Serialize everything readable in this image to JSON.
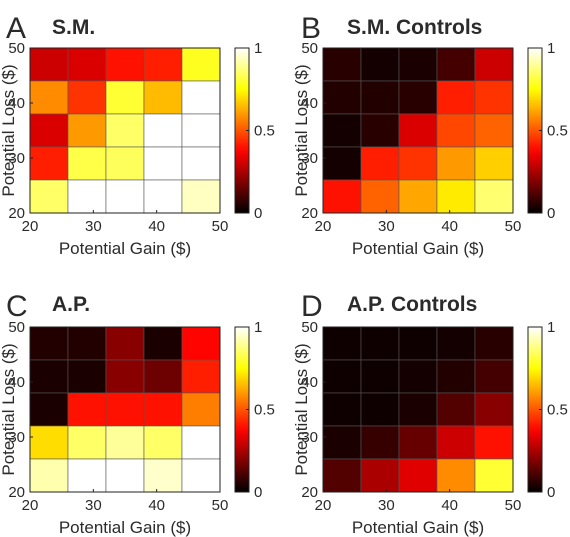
{
  "chart_data": [
    {
      "type": "heatmap",
      "panel_letter": "A",
      "title": "S.M.",
      "xlabel": "Potential Gain ($)",
      "ylabel": "Potential Loss ($)",
      "xlim": [
        20,
        50
      ],
      "ylim": [
        20,
        50
      ],
      "xticks": [
        "20",
        "30",
        "40",
        "50"
      ],
      "yticks": [
        "20",
        "30",
        "40",
        "50"
      ],
      "colorbar": {
        "range": [
          0,
          1
        ],
        "ticks": [
          "0",
          "0.5",
          "1"
        ],
        "colormap": "hot"
      },
      "grid_rows_top_to_bottom": [
        [
          0.3,
          0.32,
          0.4,
          0.42,
          0.78
        ],
        [
          0.58,
          0.45,
          0.8,
          0.65,
          1.0
        ],
        [
          0.32,
          0.6,
          0.85,
          1.0,
          1.0
        ],
        [
          0.42,
          0.82,
          0.84,
          1.0,
          1.0
        ],
        [
          0.85,
          1.0,
          1.0,
          1.0,
          0.94
        ]
      ]
    },
    {
      "type": "heatmap",
      "panel_letter": "B",
      "title": "S.M. Controls",
      "xlabel": "Potential Gain ($)",
      "ylabel": "Potential Loss ($)",
      "xlim": [
        20,
        50
      ],
      "ylim": [
        20,
        50
      ],
      "xticks": [
        "20",
        "30",
        "40",
        "50"
      ],
      "yticks": [
        "20",
        "30",
        "40",
        "50"
      ],
      "colorbar": {
        "range": [
          0,
          1
        ],
        "ticks": [
          "0",
          "0.5",
          "1"
        ],
        "colormap": "hot"
      },
      "grid_rows_top_to_bottom": [
        [
          0.06,
          0.03,
          0.04,
          0.1,
          0.3
        ],
        [
          0.05,
          0.05,
          0.06,
          0.42,
          0.45
        ],
        [
          0.03,
          0.06,
          0.32,
          0.48,
          0.52
        ],
        [
          0.03,
          0.42,
          0.45,
          0.6,
          0.68
        ],
        [
          0.4,
          0.52,
          0.62,
          0.72,
          0.86
        ]
      ]
    },
    {
      "type": "heatmap",
      "panel_letter": "C",
      "title": "A.P.",
      "xlabel": "Potential Gain ($)",
      "ylabel": "Potential Loss ($)",
      "xlim": [
        20,
        50
      ],
      "ylim": [
        20,
        50
      ],
      "xticks": [
        "20",
        "30",
        "40",
        "50"
      ],
      "yticks": [
        "20",
        "30",
        "40",
        "50"
      ],
      "colorbar": {
        "range": [
          0,
          1
        ],
        "ticks": [
          "0",
          "0.5",
          "1"
        ],
        "colormap": "hot"
      },
      "grid_rows_top_to_bottom": [
        [
          0.05,
          0.05,
          0.2,
          0.04,
          0.38
        ],
        [
          0.04,
          0.04,
          0.2,
          0.16,
          0.42
        ],
        [
          0.04,
          0.4,
          0.4,
          0.4,
          0.56
        ],
        [
          0.7,
          0.85,
          0.9,
          0.85,
          1.0
        ],
        [
          0.92,
          1.0,
          1.0,
          0.95,
          1.0
        ]
      ]
    },
    {
      "type": "heatmap",
      "panel_letter": "D",
      "title": "A.P. Controls",
      "xlabel": "Potential Gain ($)",
      "ylabel": "Potential Loss ($)",
      "xlim": [
        20,
        50
      ],
      "ylim": [
        20,
        50
      ],
      "xticks": [
        "20",
        "30",
        "40",
        "50"
      ],
      "yticks": [
        "20",
        "30",
        "40",
        "50"
      ],
      "colorbar": {
        "range": [
          0,
          1
        ],
        "ticks": [
          "0",
          "0.5",
          "1"
        ],
        "colormap": "hot"
      },
      "grid_rows_top_to_bottom": [
        [
          0.02,
          0.02,
          0.02,
          0.03,
          0.06
        ],
        [
          0.02,
          0.02,
          0.03,
          0.05,
          0.1
        ],
        [
          0.02,
          0.02,
          0.04,
          0.12,
          0.2
        ],
        [
          0.04,
          0.08,
          0.15,
          0.3,
          0.4
        ],
        [
          0.12,
          0.25,
          0.33,
          0.58,
          0.8
        ]
      ]
    }
  ]
}
